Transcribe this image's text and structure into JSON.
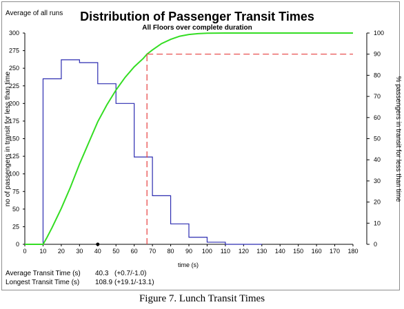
{
  "chart_data": {
    "type": "line",
    "title": "Distribution of Passenger Transit Times",
    "subtitle": "All Floors over complete duration",
    "corner_label": "Average of all runs",
    "xlabel": "time (s)",
    "ylabel_left": "no of passengers in transit for less than time",
    "ylabel_right": "% passengers in transit for less than time",
    "xlim": [
      0,
      180
    ],
    "ylim_left": [
      0,
      300
    ],
    "ylim_right": [
      0,
      100
    ],
    "x_ticks": [
      0,
      10,
      20,
      30,
      40,
      50,
      60,
      70,
      80,
      90,
      100,
      110,
      120,
      130,
      140,
      150,
      160,
      170,
      180
    ],
    "y_left_ticks": [
      0,
      25,
      50,
      75,
      100,
      125,
      150,
      175,
      200,
      225,
      250,
      275,
      300
    ],
    "y_left_tick_labels": [
      "0",
      "25",
      "50",
      "75",
      "100",
      "125",
      "150",
      "175",
      "200",
      "225",
      "250",
      "275",
      "300"
    ],
    "y_right_ticks": [
      0,
      10,
      20,
      30,
      40,
      50,
      60,
      70,
      80,
      90,
      100
    ],
    "grid": false,
    "series": [
      {
        "kind": "histogram",
        "axis": "left",
        "color": "#2b2bb0",
        "bins": [
          {
            "x0": 0,
            "x1": 10,
            "value": 0
          },
          {
            "x0": 10,
            "x1": 20,
            "value": 235
          },
          {
            "x0": 20,
            "x1": 30,
            "value": 262
          },
          {
            "x0": 30,
            "x1": 40,
            "value": 258
          },
          {
            "x0": 40,
            "x1": 50,
            "value": 228
          },
          {
            "x0": 50,
            "x1": 60,
            "value": 200
          },
          {
            "x0": 60,
            "x1": 70,
            "value": 124
          },
          {
            "x0": 70,
            "x1": 80,
            "value": 69
          },
          {
            "x0": 80,
            "x1": 90,
            "value": 29
          },
          {
            "x0": 90,
            "x1": 100,
            "value": 10
          },
          {
            "x0": 100,
            "x1": 110,
            "value": 3
          },
          {
            "x0": 110,
            "x1": 130,
            "value": 0
          }
        ]
      },
      {
        "kind": "cumulative",
        "axis": "right",
        "color": "#33dd22",
        "x": [
          0,
          10,
          12,
          15,
          20,
          25,
          30,
          35,
          40,
          45,
          50,
          55,
          60,
          65,
          67,
          70,
          75,
          80,
          85,
          90,
          95,
          100,
          110,
          130,
          180
        ],
        "values": [
          0,
          0,
          3,
          8,
          17,
          27,
          38,
          48,
          58,
          66,
          73,
          79,
          84,
          88,
          90,
          92,
          95,
          97,
          98.5,
          99.3,
          99.7,
          99.9,
          100,
          100,
          100
        ]
      }
    ],
    "reference_lines": {
      "color": "#e63c3c",
      "x": 67,
      "y_percent": 90,
      "y_extent_x": [
        67,
        180
      ]
    },
    "marker": {
      "x": 40,
      "y": 0
    },
    "stats": [
      {
        "label": "Average Transit Time (s)",
        "value": "40.3",
        "range": "(+0.7/-1.0)"
      },
      {
        "label": "Longest Transit Time (s)",
        "value": "108.9",
        "range": "(+19.1/-13.1)"
      }
    ]
  },
  "caption": "Figure 7. Lunch Transit Times"
}
